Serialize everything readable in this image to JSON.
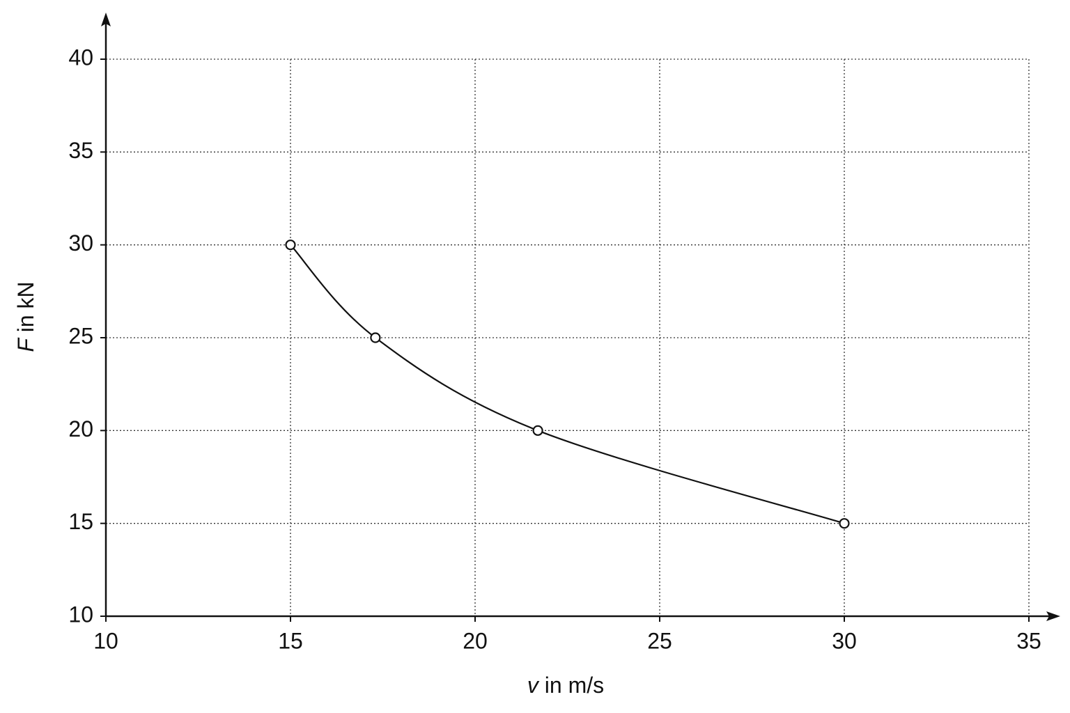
{
  "chart_data": {
    "type": "line",
    "x_label": "v in m/s",
    "y_label": "F in kN",
    "x": [
      15,
      17.3,
      21.7,
      30
    ],
    "series": [
      {
        "color": "#111111",
        "values": [
          30,
          25,
          20,
          15
        ]
      }
    ],
    "xlim": [
      10,
      35
    ],
    "xticks": [
      10,
      15,
      20,
      25,
      30,
      35
    ],
    "ylim": [
      10,
      40
    ],
    "yticks": [
      10,
      15,
      20,
      25,
      30,
      35,
      40
    ],
    "grid": true
  }
}
